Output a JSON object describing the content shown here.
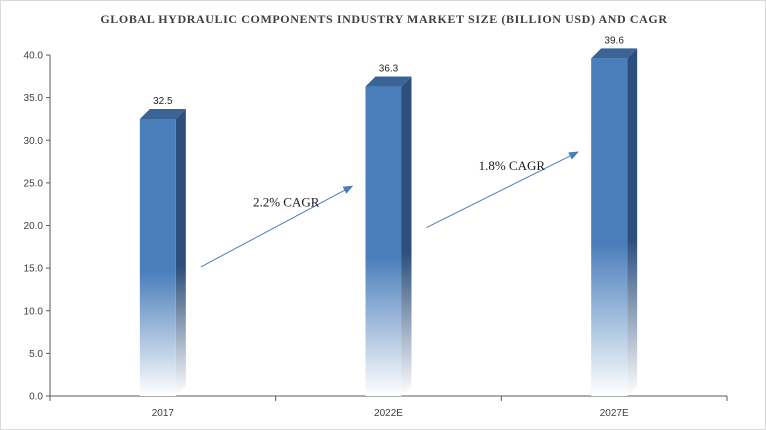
{
  "chart_data": {
    "type": "bar",
    "title": "GLOBAL HYDRAULIC COMPONENTS INDUSTRY MARKET SIZE (BILLION USD) AND CAGR",
    "categories": [
      "2017",
      "2022E",
      "2027E"
    ],
    "values": [
      32.5,
      36.3,
      39.6
    ],
    "data_labels": [
      "32.5",
      "36.3",
      "39.6"
    ],
    "ylim": [
      0,
      40
    ],
    "yticks": [
      "0.0",
      "5.0",
      "10.0",
      "15.0",
      "20.0",
      "25.0",
      "30.0",
      "35.0",
      "40.0"
    ],
    "xlabel": "",
    "ylabel": "",
    "grid": false,
    "legend": "none",
    "annotations": [
      {
        "text": "2.2% CAGR",
        "from": "2017",
        "to": "2022E"
      },
      {
        "text": "1.8% CAGR",
        "from": "2022E",
        "to": "2027E"
      }
    ],
    "colors": {
      "bar_front": "#4a7ebb",
      "bar_side": "#2c4f7c",
      "bar_top": "#3a6396",
      "arrow": "#4a7ebb",
      "axis": "#595959"
    }
  }
}
